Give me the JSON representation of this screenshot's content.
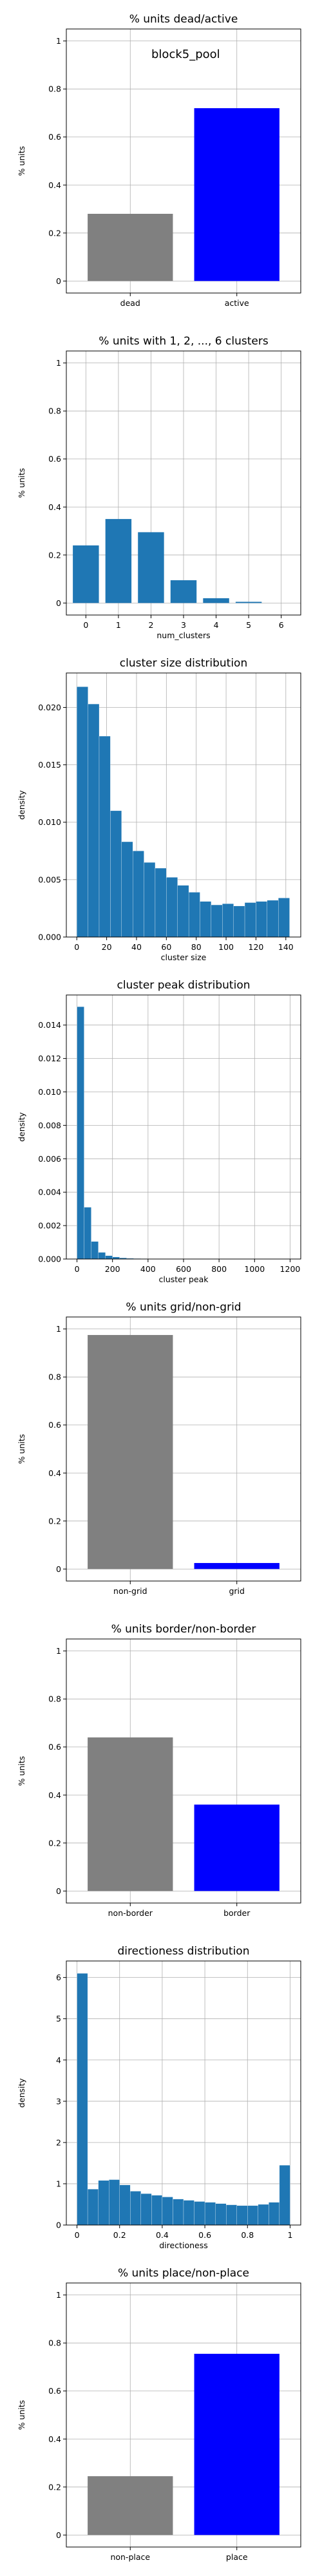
{
  "chart_data": [
    {
      "type": "bar",
      "title": "% units dead/active",
      "xlabel": "",
      "ylabel": "% units",
      "categories": [
        "dead",
        "active"
      ],
      "values": [
        0.28,
        0.72
      ],
      "colors": [
        "#808080",
        "#0000ff"
      ],
      "ylim": [
        -0.05,
        1.05
      ],
      "yticks": [
        0.0,
        0.2,
        0.4,
        0.6,
        0.8,
        1.0
      ],
      "grid": true,
      "annotation": "block5_pool"
    },
    {
      "type": "bar",
      "title": "% units with 1, 2, ..., 6 clusters",
      "xlabel": "num_clusters",
      "ylabel": "% units",
      "categories": [
        "0",
        "1",
        "2",
        "3",
        "4",
        "5",
        "6"
      ],
      "values": [
        0.24,
        0.35,
        0.295,
        0.095,
        0.02,
        0.005,
        0.0
      ],
      "colors": [
        "#1f77b4"
      ],
      "ylim": [
        -0.05,
        1.05
      ],
      "yticks": [
        0.0,
        0.2,
        0.4,
        0.6,
        0.8,
        1.0
      ],
      "grid": true
    },
    {
      "type": "bar",
      "title": "cluster size distribution",
      "xlabel": "cluster size",
      "ylabel": "density",
      "bin_edges": [
        0,
        7.5,
        15,
        22.5,
        30,
        37.5,
        45,
        52.5,
        60,
        67.5,
        75,
        82.5,
        90,
        97.5,
        105,
        112.5,
        120,
        127.5,
        135,
        142.5
      ],
      "values": [
        0.0218,
        0.0203,
        0.0175,
        0.011,
        0.0083,
        0.0075,
        0.0065,
        0.006,
        0.0052,
        0.0045,
        0.0039,
        0.0031,
        0.0028,
        0.0029,
        0.0027,
        0.003,
        0.0031,
        0.0032,
        0.0034
      ],
      "colors": [
        "#1f77b4"
      ],
      "xlim": [
        -7,
        150
      ],
      "ylim": [
        0,
        0.023
      ],
      "xticks": [
        0,
        20,
        40,
        60,
        80,
        100,
        120,
        140
      ],
      "yticks": [
        0.0,
        0.005,
        0.01,
        0.015,
        0.02
      ],
      "ytick_labels": [
        "0.000",
        "0.005",
        "0.010",
        "0.015",
        "0.020"
      ],
      "grid": true
    },
    {
      "type": "bar",
      "title": "cluster peak distribution",
      "xlabel": "cluster peak",
      "ylabel": "density",
      "bin_edges": [
        0,
        40,
        80,
        120,
        160,
        200,
        240,
        280,
        320,
        360,
        400,
        440,
        480,
        520,
        560,
        600,
        640,
        680,
        720,
        760,
        800,
        840,
        880,
        920,
        960,
        1000,
        1040,
        1080,
        1120,
        1160,
        1200
      ],
      "values": [
        0.0151,
        0.0031,
        0.00105,
        0.0004,
        0.0002,
        0.00012,
        7e-05,
        4e-05,
        3e-05,
        2e-05,
        1e-05,
        1e-05,
        8e-06,
        6e-06,
        5e-06,
        4e-06,
        3e-06,
        3e-06,
        2e-06,
        2e-06,
        2e-06,
        1e-06,
        1e-06,
        1e-06,
        1e-06,
        1e-06,
        1e-06,
        1e-06,
        1e-06,
        1e-06
      ],
      "colors": [
        "#1f77b4"
      ],
      "xlim": [
        -60,
        1260
      ],
      "ylim": [
        0,
        0.0158
      ],
      "xticks": [
        0,
        200,
        400,
        600,
        800,
        1000,
        1200
      ],
      "yticks": [
        0.0,
        0.002,
        0.004,
        0.006,
        0.008,
        0.01,
        0.012,
        0.014
      ],
      "ytick_labels": [
        "0.000",
        "0.002",
        "0.004",
        "0.006",
        "0.008",
        "0.010",
        "0.012",
        "0.014"
      ],
      "grid": true
    },
    {
      "type": "bar",
      "title": "% units grid/non-grid",
      "xlabel": "",
      "ylabel": "% units",
      "categories": [
        "non-grid",
        "grid"
      ],
      "values": [
        0.975,
        0.025
      ],
      "colors": [
        "#808080",
        "#0000ff"
      ],
      "ylim": [
        -0.05,
        1.05
      ],
      "yticks": [
        0.0,
        0.2,
        0.4,
        0.6,
        0.8,
        1.0
      ],
      "grid": true
    },
    {
      "type": "bar",
      "title": "% units border/non-border",
      "xlabel": "",
      "ylabel": "% units",
      "categories": [
        "non-border",
        "border"
      ],
      "values": [
        0.64,
        0.36
      ],
      "colors": [
        "#808080",
        "#0000ff"
      ],
      "ylim": [
        -0.05,
        1.05
      ],
      "yticks": [
        0.0,
        0.2,
        0.4,
        0.6,
        0.8,
        1.0
      ],
      "grid": true
    },
    {
      "type": "bar",
      "title": "directioness distribution",
      "xlabel": "directioness",
      "ylabel": "density",
      "bin_edges": [
        0,
        0.05,
        0.1,
        0.15,
        0.2,
        0.25,
        0.3,
        0.35,
        0.4,
        0.45,
        0.5,
        0.55,
        0.6,
        0.65,
        0.7,
        0.75,
        0.8,
        0.85,
        0.9,
        0.95,
        1.0
      ],
      "values": [
        6.1,
        0.87,
        1.08,
        1.1,
        0.97,
        0.82,
        0.76,
        0.72,
        0.68,
        0.63,
        0.6,
        0.57,
        0.55,
        0.52,
        0.49,
        0.47,
        0.47,
        0.5,
        0.55,
        1.45
      ],
      "colors": [
        "#1f77b4"
      ],
      "xlim": [
        -0.05,
        1.05
      ],
      "ylim": [
        0,
        6.4
      ],
      "xticks": [
        0.0,
        0.2,
        0.4,
        0.6,
        0.8,
        1.0
      ],
      "yticks": [
        0,
        1,
        2,
        3,
        4,
        5,
        6
      ],
      "grid": true
    },
    {
      "type": "bar",
      "title": "% units place/non-place",
      "xlabel": "",
      "ylabel": "% units",
      "categories": [
        "non-place",
        "place"
      ],
      "values": [
        0.245,
        0.755
      ],
      "colors": [
        "#808080",
        "#0000ff"
      ],
      "ylim": [
        -0.05,
        1.05
      ],
      "yticks": [
        0.0,
        0.2,
        0.4,
        0.6,
        0.8,
        1.0
      ],
      "grid": true
    }
  ]
}
